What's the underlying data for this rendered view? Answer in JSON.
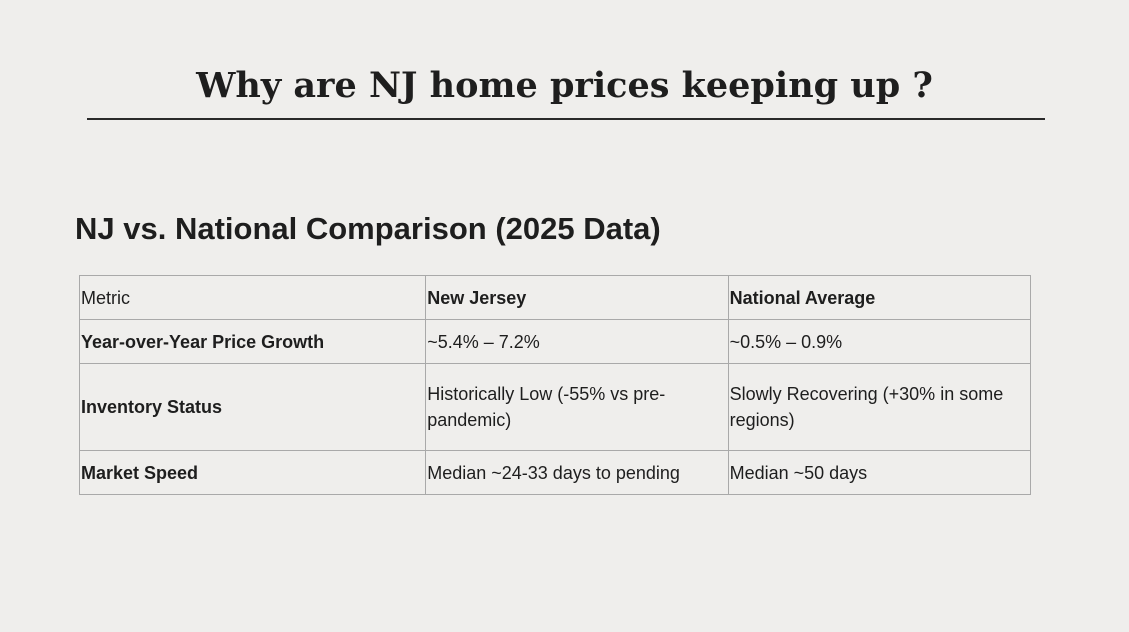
{
  "slide": {
    "title": "Why are NJ home prices keeping up ?",
    "section_heading": "NJ vs. National Comparison (2025 Data)"
  },
  "table": {
    "headers": [
      "Metric",
      "New Jersey",
      "National Average"
    ],
    "rows": [
      {
        "metric": "Year-over-Year Price Growth",
        "new_jersey": "~5.4% – 7.2%",
        "national": "~0.5% – 0.9%"
      },
      {
        "metric": "Inventory Status",
        "new_jersey": "Historically Low (-55% vs pre-pandemic)",
        "national": "Slowly Recovering (+30% in some regions)"
      },
      {
        "metric": "Market Speed",
        "new_jersey": "Median ~24-33 days to pending",
        "national": "Median ~50 days"
      }
    ]
  }
}
